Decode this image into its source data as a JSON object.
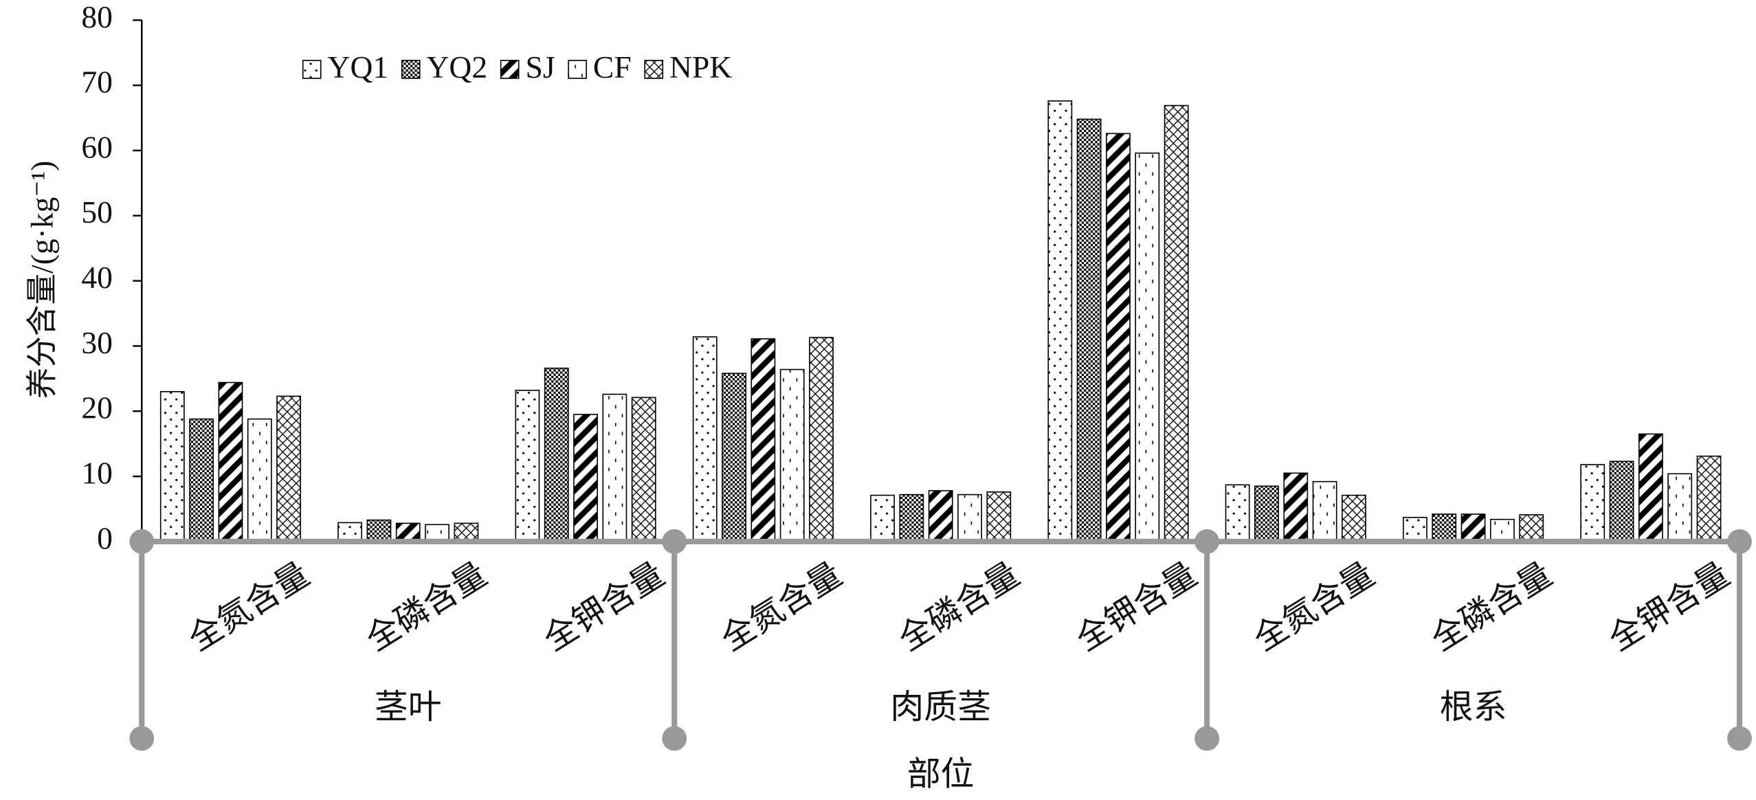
{
  "chart_data": {
    "type": "bar",
    "y_label": "养分含量/(g·kg⁻¹)",
    "x_label": "部位",
    "categories": [
      "全氮含量",
      "全磷含量",
      "全钾含量",
      "全氮含量",
      "全磷含量",
      "全钾含量",
      "全氮含量",
      "全磷含量",
      "全钾含量"
    ],
    "groups": [
      "茎叶",
      "肉质茎",
      "根系"
    ],
    "series": [
      {
        "name": "YQ1",
        "pattern": "dots",
        "color": "#000000",
        "values": [
          23,
          2.9,
          23.2,
          31.4,
          7.1,
          67.6,
          8.7,
          3.7,
          11.8
        ]
      },
      {
        "name": "YQ2",
        "pattern": "dense-check",
        "color": "#000000",
        "values": [
          18.8,
          3.3,
          26.6,
          25.8,
          7.2,
          64.8,
          8.5,
          4.2,
          12.3
        ]
      },
      {
        "name": "SJ",
        "pattern": "thick-diagonal",
        "color": "#000000",
        "values": [
          24.4,
          2.8,
          19.5,
          31.1,
          7.8,
          62.6,
          10.5,
          4.2,
          16.5
        ]
      },
      {
        "name": "CF",
        "pattern": "sparse-dash",
        "color": "#000000",
        "values": [
          18.8,
          2.6,
          22.6,
          26.4,
          7.2,
          59.6,
          9.2,
          3.4,
          10.4
        ]
      },
      {
        "name": "NPK",
        "pattern": "cross-diagonal",
        "color": "#000000",
        "values": [
          22.3,
          2.8,
          22.1,
          31.3,
          7.6,
          66.9,
          7.1,
          4.1,
          13.1
        ]
      }
    ],
    "ylim": [
      0,
      80
    ],
    "yticks": [
      0,
      10,
      20,
      30,
      40,
      50,
      60,
      70,
      80
    ],
    "grid": false,
    "legend": "top-left"
  }
}
